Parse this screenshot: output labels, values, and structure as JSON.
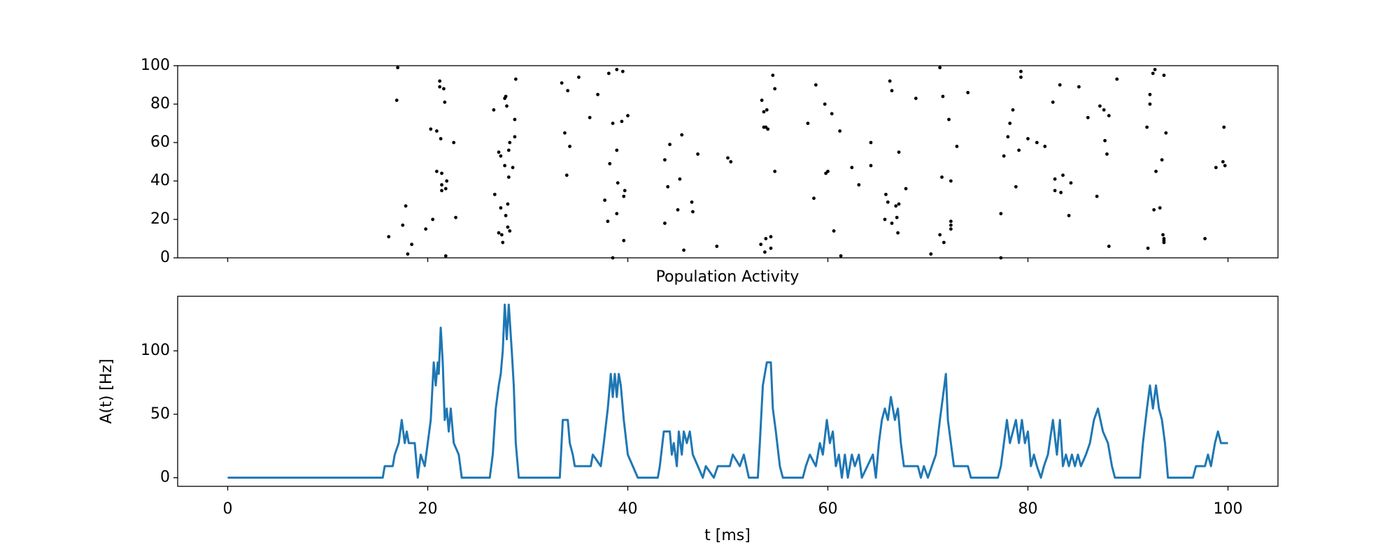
{
  "chart_data": [
    {
      "type": "scatter",
      "color": "#000000",
      "x": [
        16.1,
        16.9,
        17.0,
        17.5,
        17.8,
        18.0,
        18.4,
        19.8,
        20.3,
        20.5,
        20.9,
        21.2,
        21.2,
        20.9,
        21.3,
        21.4,
        21.6,
        21.7,
        21.4,
        21.4,
        21.9,
        21.8,
        21.8,
        22.6,
        22.8,
        26.6,
        26.7,
        27.1,
        27.3,
        27.1,
        27.3,
        27.4,
        27.5,
        27.7,
        27.8,
        27.7,
        27.8,
        27.9,
        28.1,
        28.0,
        28.1,
        28.0,
        28.2,
        28.2,
        28.5,
        28.7,
        28.7,
        28.8,
        33.4,
        33.7,
        33.9,
        34.0,
        34.2,
        35.1,
        36.2,
        37.0,
        37.7,
        38.0,
        38.1,
        38.2,
        38.5,
        38.5,
        38.9,
        38.9,
        38.9,
        39.0,
        39.4,
        39.5,
        39.6,
        39.6,
        39.7,
        40.0,
        43.7,
        43.7,
        44.0,
        44.2,
        45.0,
        45.2,
        45.4,
        45.6,
        46.4,
        46.5,
        47.0,
        48.9,
        50.0,
        50.3,
        53.3,
        53.4,
        53.6,
        53.6,
        53.7,
        53.8,
        53.8,
        53.9,
        54.0,
        54.3,
        54.3,
        54.5,
        54.7,
        54.7,
        58.0,
        58.6,
        58.8,
        59.7,
        59.8,
        60.0,
        60.4,
        60.6,
        61.2,
        61.3,
        62.4,
        63.1,
        64.3,
        64.3,
        65.8,
        66.0,
        65.7,
        66.2,
        66.4,
        66.4,
        66.8,
        67.0,
        67.1,
        67.1,
        66.9,
        67.8,
        68.8,
        70.3,
        71.2,
        71.2,
        71.4,
        71.5,
        71.6,
        72.1,
        72.3,
        72.3,
        72.3,
        72.3,
        72.9,
        74.0,
        77.3,
        77.3,
        77.6,
        78.0,
        78.2,
        78.5,
        78.8,
        79.1,
        79.3,
        79.3,
        80.0,
        80.9,
        81.7,
        82.5,
        82.7,
        82.7,
        83.2,
        83.3,
        83.5,
        84.1,
        84.3,
        85.1,
        86.0,
        86.9,
        87.2,
        87.6,
        87.7,
        87.9,
        88.1,
        88.1,
        88.9,
        91.9,
        92.0,
        92.2,
        92.2,
        92.5,
        92.6,
        92.7,
        92.8,
        93.2,
        93.4,
        93.5,
        93.6,
        93.6,
        93.6,
        93.6,
        93.8,
        97.7,
        98.8,
        99.5,
        99.6,
        99.7
      ],
      "y": [
        11,
        82,
        99,
        17,
        27,
        2,
        7,
        15,
        67,
        20,
        66,
        92,
        89,
        45,
        62,
        44,
        88,
        81,
        38,
        35,
        40,
        36,
        1,
        60,
        21,
        77,
        33,
        55,
        53,
        13,
        26,
        12,
        8,
        83,
        84,
        48,
        22,
        79,
        56,
        28,
        42,
        16,
        14,
        60,
        47,
        63,
        72,
        93,
        91,
        65,
        43,
        87,
        58,
        94,
        73,
        85,
        30,
        19,
        96,
        49,
        70,
        0,
        23,
        56,
        98,
        39,
        71,
        97,
        9,
        32,
        35,
        74,
        51,
        18,
        37,
        59,
        25,
        41,
        64,
        4,
        29,
        24,
        54,
        6,
        52,
        50,
        7,
        82,
        76,
        68,
        3,
        10,
        68,
        77,
        67,
        11,
        5,
        95,
        88,
        45,
        70,
        31,
        90,
        80,
        44,
        45,
        75,
        14,
        66,
        1,
        47,
        38,
        60,
        48,
        33,
        29,
        20,
        92,
        87,
        18,
        27,
        13,
        55,
        28,
        21,
        36,
        83,
        2,
        99,
        12,
        42,
        84,
        8,
        72,
        40,
        19,
        17,
        15,
        58,
        86,
        23,
        0,
        53,
        63,
        70,
        77,
        37,
        56,
        97,
        94,
        62,
        60,
        58,
        81,
        41,
        35,
        90,
        34,
        43,
        22,
        39,
        89,
        73,
        32,
        79,
        77,
        61,
        54,
        74,
        6,
        93,
        68,
        5,
        85,
        80,
        96,
        25,
        98,
        45,
        26,
        51,
        12,
        10,
        8,
        9,
        95,
        65,
        10,
        47,
        50,
        68,
        48
      ],
      "xlim": [
        -5,
        105
      ],
      "xticks": [
        0,
        20,
        40,
        60,
        80,
        100
      ],
      "ylim": [
        0,
        100
      ],
      "yticks": [
        0,
        20,
        40,
        60,
        80,
        100
      ]
    },
    {
      "type": "line",
      "title": "Population Activity",
      "x_label": "t [ms]",
      "y_label": "A(t) [Hz]",
      "x": [
        0,
        15.5,
        15.7,
        16.5,
        16.7,
        17.1,
        17.4,
        17.7,
        17.9,
        18.1,
        18.7,
        19,
        19.3,
        19.7,
        20,
        20.3,
        20.6,
        20.8,
        21,
        21.1,
        21.3,
        21.5,
        21.7,
        21.9,
        22.1,
        22.3,
        22.6,
        23.1,
        23.4,
        26.2,
        26.5,
        26.8,
        27.1,
        27.3,
        27.5,
        27.7,
        27.9,
        28.1,
        28.4,
        28.6,
        28.8,
        29.1,
        33.2,
        33.5,
        34,
        34.2,
        34.5,
        34.7,
        35.5,
        36.3,
        36.5,
        37.3,
        37.6,
        38,
        38.3,
        38.5,
        38.7,
        38.9,
        39.1,
        39.3,
        39.6,
        40,
        40.5,
        41,
        43,
        43.2,
        43.6,
        44.2,
        44.4,
        44.6,
        44.9,
        45.1,
        45.4,
        45.6,
        45.9,
        46.2,
        46.5,
        47,
        47.5,
        47.8,
        48.6,
        49,
        50.2,
        50.5,
        51.2,
        51.6,
        52.1,
        53,
        53.2,
        53.5,
        53.7,
        53.9,
        54.3,
        54.5,
        54.8,
        55.2,
        55.5,
        57.5,
        57.8,
        58.2,
        58.8,
        59.2,
        59.5,
        59.9,
        60.2,
        60.5,
        60.8,
        61.1,
        61.4,
        61.7,
        62,
        62.4,
        62.7,
        63.1,
        63.4,
        64.5,
        64.8,
        65.1,
        65.4,
        65.7,
        66,
        66.3,
        66.7,
        67,
        67.3,
        67.6,
        69,
        69.3,
        69.6,
        70,
        70.4,
        70.8,
        71.2,
        71.5,
        71.8,
        72,
        72.3,
        72.6,
        74,
        74.3,
        77,
        77.3,
        77.6,
        77.9,
        78.2,
        78.5,
        78.8,
        79.1,
        79.4,
        79.7,
        80,
        80.3,
        80.6,
        80.9,
        81.3,
        81.6,
        82,
        82.5,
        82.9,
        83.2,
        83.5,
        83.8,
        84.1,
        84.4,
        84.7,
        85,
        85.3,
        85.8,
        86.2,
        86.6,
        87,
        87.5,
        88,
        88.4,
        88.7,
        89,
        91.2,
        91.5,
        91.9,
        92.2,
        92.5,
        92.8,
        93.1,
        93.4,
        93.7,
        94,
        96.5,
        96.8,
        97.7,
        98,
        98.3,
        98.7,
        99,
        99.3,
        100
      ],
      "series": [
        {
          "color": "#1f77b4",
          "values": [
            0,
            0,
            9.1,
            9.1,
            18.2,
            27.3,
            45.5,
            27.3,
            36.4,
            27.3,
            27.3,
            0,
            18.2,
            9.1,
            27.3,
            45.5,
            90.9,
            72.7,
            90.9,
            81.8,
            118.2,
            90.9,
            45.5,
            54.5,
            36.4,
            54.5,
            27.3,
            18.2,
            0,
            0,
            18.2,
            54.5,
            72.7,
            81.8,
            100,
            136.4,
            109.1,
            136.4,
            100,
            72.7,
            27.3,
            0,
            0,
            45.5,
            45.5,
            27.3,
            18.2,
            9.1,
            9.1,
            9.1,
            18.2,
            9.1,
            27.3,
            54.5,
            81.8,
            63.6,
            81.8,
            63.6,
            81.8,
            72.7,
            45.5,
            18.2,
            9.1,
            0,
            0,
            9.1,
            36.4,
            36.4,
            18.2,
            27.3,
            9.1,
            36.4,
            18.2,
            36.4,
            27.3,
            36.4,
            18.2,
            9.1,
            0,
            9.1,
            0,
            9.1,
            9.1,
            18.2,
            9.1,
            18.2,
            0,
            0,
            27.3,
            72.7,
            81.8,
            90.9,
            90.9,
            54.5,
            36.4,
            9.1,
            0,
            0,
            9.1,
            18.2,
            9.1,
            27.3,
            18.2,
            45.5,
            27.3,
            36.4,
            9.1,
            18.2,
            0,
            18.2,
            0,
            18.2,
            9.1,
            18.2,
            0,
            18.2,
            0,
            27.3,
            45.5,
            54.5,
            45.5,
            63.6,
            45.5,
            54.5,
            27.3,
            9.1,
            9.1,
            0,
            9.1,
            0,
            9.1,
            18.2,
            45.5,
            63.6,
            81.8,
            45.5,
            27.3,
            9.1,
            9.1,
            0,
            0,
            9.1,
            27.3,
            45.5,
            27.3,
            36.4,
            45.5,
            27.3,
            45.5,
            27.3,
            36.4,
            9.1,
            18.2,
            9.1,
            0,
            9.1,
            18.2,
            45.5,
            18.2,
            45.5,
            9.1,
            18.2,
            9.1,
            18.2,
            9.1,
            18.2,
            9.1,
            18.2,
            27.3,
            45.5,
            54.5,
            36.4,
            27.3,
            9.1,
            0,
            0,
            0,
            27.3,
            54.5,
            72.7,
            54.5,
            72.7,
            54.5,
            45.5,
            27.3,
            0,
            0,
            9.1,
            9.1,
            18.2,
            9.1,
            27.3,
            36.4,
            27.3,
            27.3
          ]
        }
      ],
      "xlim": [
        -5,
        105
      ],
      "xticks": [
        0,
        20,
        40,
        60,
        80,
        100
      ],
      "ylim": [
        -6.8,
        143
      ],
      "yticks": [
        0,
        50,
        100
      ]
    }
  ]
}
